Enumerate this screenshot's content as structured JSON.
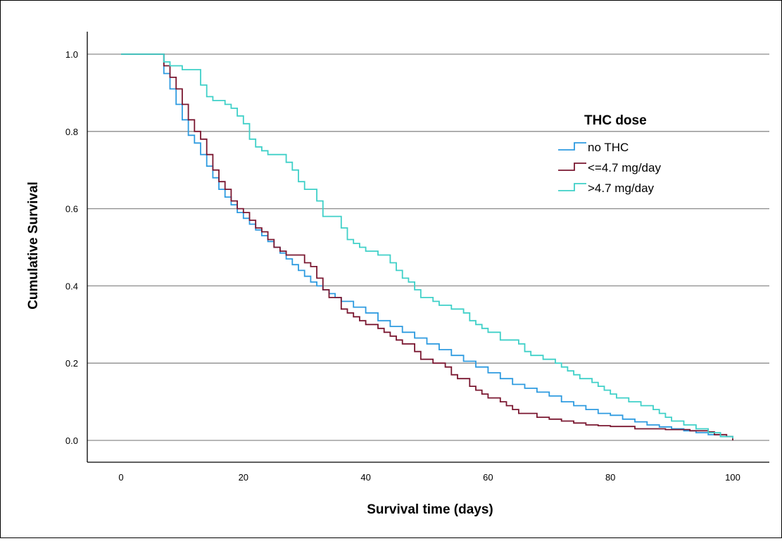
{
  "chart_data": {
    "type": "line",
    "step": true,
    "xlabel": "Survival time (days)",
    "ylabel": "Cumulative Survival",
    "xlim": [
      0,
      100
    ],
    "ylim": [
      0,
      1
    ],
    "xticks": [
      0,
      20,
      40,
      60,
      80,
      100
    ],
    "yticks": [
      0.0,
      0.2,
      0.4,
      0.6,
      0.8,
      1.0
    ],
    "ytick_labels": [
      "0.0",
      "0.2",
      "0.4",
      "0.6",
      "0.8",
      "1.0"
    ],
    "grid": "horizontal",
    "legend": {
      "title": "THC dose",
      "position": "top-right"
    },
    "series": [
      {
        "name": "no THC",
        "color": "#2e9be0",
        "x": [
          0,
          7,
          8,
          9,
          10,
          11,
          12,
          13,
          14,
          15,
          16,
          17,
          18,
          19,
          20,
          21,
          22,
          23,
          24,
          25,
          26,
          27,
          28,
          29,
          30,
          31,
          32,
          33,
          34,
          35,
          36,
          38,
          40,
          42,
          44,
          46,
          48,
          50,
          52,
          54,
          56,
          58,
          60,
          62,
          64,
          66,
          68,
          70,
          72,
          74,
          76,
          78,
          80,
          82,
          84,
          86,
          88,
          90,
          92,
          94,
          96,
          98,
          100
        ],
        "y": [
          1.0,
          0.95,
          0.91,
          0.87,
          0.83,
          0.79,
          0.77,
          0.74,
          0.71,
          0.68,
          0.65,
          0.63,
          0.61,
          0.59,
          0.575,
          0.56,
          0.545,
          0.53,
          0.515,
          0.5,
          0.485,
          0.47,
          0.455,
          0.44,
          0.425,
          0.41,
          0.4,
          0.39,
          0.38,
          0.37,
          0.36,
          0.345,
          0.33,
          0.31,
          0.295,
          0.28,
          0.265,
          0.25,
          0.235,
          0.22,
          0.205,
          0.19,
          0.175,
          0.16,
          0.145,
          0.135,
          0.125,
          0.115,
          0.1,
          0.09,
          0.08,
          0.07,
          0.065,
          0.055,
          0.048,
          0.04,
          0.035,
          0.03,
          0.025,
          0.02,
          0.015,
          0.01,
          0.005
        ]
      },
      {
        "name": "<=4.7 mg/day",
        "color": "#7a1730",
        "x": [
          0,
          7,
          8,
          9,
          10,
          11,
          12,
          13,
          14,
          15,
          16,
          17,
          18,
          19,
          20,
          21,
          22,
          23,
          24,
          25,
          26,
          27,
          30,
          31,
          32,
          33,
          34,
          36,
          37,
          38,
          39,
          40,
          42,
          43,
          44,
          45,
          46,
          48,
          49,
          51,
          53,
          54,
          55,
          57,
          58,
          59,
          60,
          62,
          63,
          64,
          65,
          68,
          70,
          72,
          74,
          76,
          78,
          80,
          84,
          89,
          93,
          96,
          97,
          99,
          100
        ],
        "y": [
          1.0,
          0.97,
          0.94,
          0.91,
          0.87,
          0.83,
          0.8,
          0.78,
          0.74,
          0.7,
          0.67,
          0.65,
          0.62,
          0.6,
          0.59,
          0.57,
          0.55,
          0.54,
          0.52,
          0.5,
          0.49,
          0.48,
          0.46,
          0.45,
          0.42,
          0.39,
          0.37,
          0.34,
          0.33,
          0.32,
          0.31,
          0.3,
          0.29,
          0.28,
          0.27,
          0.26,
          0.25,
          0.23,
          0.21,
          0.2,
          0.19,
          0.17,
          0.16,
          0.14,
          0.13,
          0.12,
          0.11,
          0.1,
          0.09,
          0.08,
          0.07,
          0.06,
          0.055,
          0.05,
          0.045,
          0.04,
          0.038,
          0.036,
          0.03,
          0.028,
          0.025,
          0.022,
          0.015,
          0.01,
          0.0
        ]
      },
      {
        "name": ">4.7 mg/day",
        "color": "#3fd0c8",
        "x": [
          0,
          7,
          8,
          10,
          13,
          14,
          15,
          17,
          18,
          19,
          20,
          21,
          22,
          23,
          24,
          27,
          28,
          29,
          30,
          32,
          33,
          36,
          37,
          38,
          39,
          40,
          42,
          44,
          45,
          46,
          47,
          48,
          49,
          51,
          52,
          54,
          56,
          57,
          58,
          59,
          60,
          62,
          65,
          66,
          67,
          69,
          71,
          72,
          73,
          74,
          75,
          77,
          78,
          79,
          80,
          81,
          83,
          85,
          87,
          88,
          89,
          90,
          92,
          94,
          96,
          98,
          100
        ],
        "y": [
          1.0,
          0.98,
          0.97,
          0.96,
          0.92,
          0.89,
          0.88,
          0.87,
          0.86,
          0.84,
          0.82,
          0.78,
          0.76,
          0.75,
          0.74,
          0.72,
          0.7,
          0.67,
          0.65,
          0.62,
          0.58,
          0.55,
          0.52,
          0.51,
          0.5,
          0.49,
          0.48,
          0.46,
          0.44,
          0.42,
          0.41,
          0.39,
          0.37,
          0.36,
          0.35,
          0.34,
          0.33,
          0.31,
          0.3,
          0.29,
          0.28,
          0.26,
          0.25,
          0.23,
          0.22,
          0.21,
          0.2,
          0.19,
          0.18,
          0.17,
          0.16,
          0.15,
          0.14,
          0.13,
          0.12,
          0.11,
          0.1,
          0.09,
          0.08,
          0.07,
          0.06,
          0.05,
          0.04,
          0.03,
          0.02,
          0.01,
          0.005
        ]
      }
    ]
  }
}
